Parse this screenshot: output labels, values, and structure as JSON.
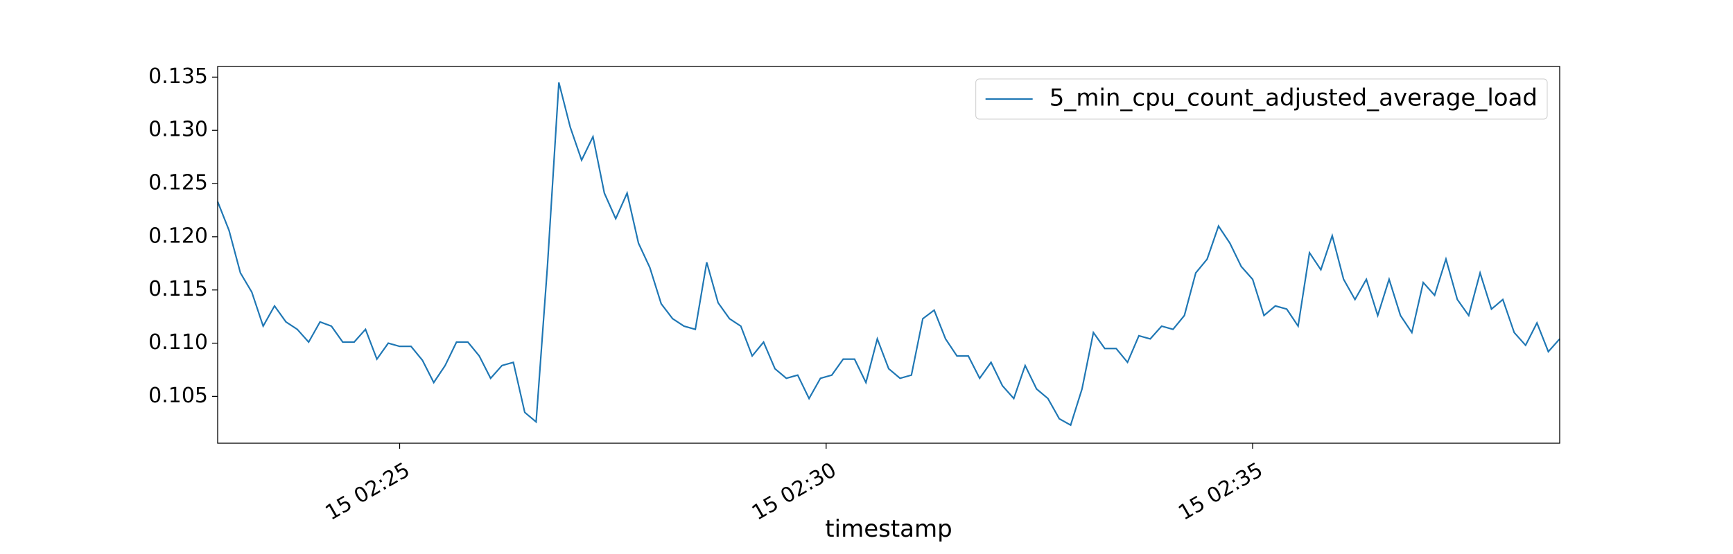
{
  "chart_data": {
    "type": "line",
    "x_label": "timestamp",
    "x": [
      "15 02:22:52",
      "15 02:23:00",
      "15 02:23:08",
      "15 02:23:16",
      "15 02:23:24",
      "15 02:23:32",
      "15 02:23:40",
      "15 02:23:48",
      "15 02:23:56",
      "15 02:24:04",
      "15 02:24:12",
      "15 02:24:20",
      "15 02:24:28",
      "15 02:24:36",
      "15 02:24:44",
      "15 02:24:52",
      "15 02:25:00",
      "15 02:25:08",
      "15 02:25:16",
      "15 02:25:24",
      "15 02:25:32",
      "15 02:25:40",
      "15 02:25:48",
      "15 02:25:56",
      "15 02:26:04",
      "15 02:26:12",
      "15 02:26:20",
      "15 02:26:28",
      "15 02:26:36",
      "15 02:26:44",
      "15 02:26:52",
      "15 02:27:00",
      "15 02:27:08",
      "15 02:27:16",
      "15 02:27:24",
      "15 02:27:32",
      "15 02:27:40",
      "15 02:27:48",
      "15 02:27:56",
      "15 02:28:04",
      "15 02:28:12",
      "15 02:28:20",
      "15 02:28:28",
      "15 02:28:36",
      "15 02:28:44",
      "15 02:28:52",
      "15 02:29:00",
      "15 02:29:08",
      "15 02:29:16",
      "15 02:29:24",
      "15 02:29:32",
      "15 02:29:40",
      "15 02:29:48",
      "15 02:29:56",
      "15 02:30:04",
      "15 02:30:12",
      "15 02:30:20",
      "15 02:30:28",
      "15 02:30:36",
      "15 02:30:44",
      "15 02:30:52",
      "15 02:31:00",
      "15 02:31:08",
      "15 02:31:16",
      "15 02:31:24",
      "15 02:31:32",
      "15 02:31:40",
      "15 02:31:48",
      "15 02:31:56",
      "15 02:32:04",
      "15 02:32:12",
      "15 02:32:20",
      "15 02:32:28",
      "15 02:32:36",
      "15 02:32:44",
      "15 02:32:52",
      "15 02:33:00",
      "15 02:33:08",
      "15 02:33:16",
      "15 02:33:24",
      "15 02:33:32",
      "15 02:33:40",
      "15 02:33:48",
      "15 02:33:56",
      "15 02:34:04",
      "15 02:34:12",
      "15 02:34:20",
      "15 02:34:28",
      "15 02:34:36",
      "15 02:34:44",
      "15 02:34:52",
      "15 02:35:00",
      "15 02:35:08",
      "15 02:35:16",
      "15 02:35:24",
      "15 02:35:32",
      "15 02:35:40",
      "15 02:35:48",
      "15 02:35:56",
      "15 02:36:04",
      "15 02:36:12",
      "15 02:36:20",
      "15 02:36:28",
      "15 02:36:36",
      "15 02:36:44",
      "15 02:36:52",
      "15 02:37:00",
      "15 02:37:08",
      "15 02:37:16",
      "15 02:37:24",
      "15 02:37:32",
      "15 02:37:40",
      "15 02:37:48",
      "15 02:37:56",
      "15 02:38:04",
      "15 02:38:12",
      "15 02:38:20",
      "15 02:38:28",
      "15 02:38:36"
    ],
    "series": [
      {
        "name": "5_min_cpu_count_adjusted_average_load",
        "color": "#1f77b4",
        "values": [
          0.1233,
          0.1206,
          0.1166,
          0.1148,
          0.1116,
          0.1135,
          0.112,
          0.1113,
          0.1101,
          0.112,
          0.1116,
          0.1101,
          0.1101,
          0.1113,
          0.1085,
          0.11,
          0.1097,
          0.1097,
          0.1084,
          0.1063,
          0.1079,
          0.1101,
          0.1101,
          0.1088,
          0.1067,
          0.1079,
          0.1082,
          0.1035,
          0.1026,
          0.1173,
          0.1345,
          0.1303,
          0.1272,
          0.1294,
          0.1241,
          0.1217,
          0.1241,
          0.1194,
          0.1171,
          0.1137,
          0.1123,
          0.1116,
          0.1113,
          0.1176,
          0.1138,
          0.1123,
          0.1116,
          0.1088,
          0.1101,
          0.1076,
          0.1067,
          0.107,
          0.1048,
          0.1067,
          0.107,
          0.1085,
          0.1085,
          0.1063,
          0.1104,
          0.1076,
          0.1067,
          0.107,
          0.1123,
          0.1131,
          0.1104,
          0.1088,
          0.1088,
          0.1067,
          0.1082,
          0.106,
          0.1048,
          0.1079,
          0.1057,
          0.1048,
          0.1029,
          0.1023,
          0.1057,
          0.111,
          0.1095,
          0.1095,
          0.1082,
          0.1107,
          0.1104,
          0.1116,
          0.1113,
          0.1126,
          0.1166,
          0.1179,
          0.121,
          0.1194,
          0.1172,
          0.116,
          0.1126,
          0.1135,
          0.1132,
          0.1116,
          0.1185,
          0.1169,
          0.1201,
          0.116,
          0.1141,
          0.116,
          0.1126,
          0.116,
          0.1126,
          0.111,
          0.1157,
          0.1145,
          0.1179,
          0.1141,
          0.1126,
          0.1166,
          0.1132,
          0.1141,
          0.111,
          0.1098,
          0.1119,
          0.1092,
          0.1104
        ]
      }
    ],
    "xlim": [
      "15 02:22:52",
      "15 02:38:36"
    ],
    "xticks": [
      "15 02:25",
      "15 02:30",
      "15 02:35"
    ],
    "ylim": [
      0.1006,
      0.136
    ],
    "yticks": [
      0.105,
      {
        "value": 0.11,
        "label": "0.110"
      },
      0.115,
      {
        "value": 0.12,
        "label": "0.120"
      },
      0.125,
      {
        "value": 0.13,
        "label": "0.130"
      },
      0.135
    ],
    "legend": "upper right",
    "grid": false
  }
}
